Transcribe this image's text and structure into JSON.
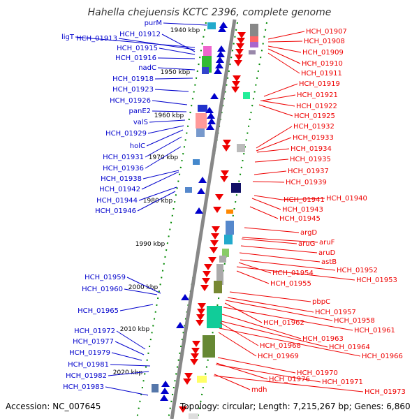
{
  "title": "Hahella chejuensis KCTC 2396, complete genome",
  "footer": {
    "accession": "Accession: NC_007645",
    "topology": "Topology: circular; Length: 7,215,267 bp; Genes: 6,860"
  },
  "colors": {
    "forward": "#0000cc",
    "reverse": "#ee0000",
    "backbone": "#888888",
    "scale": "#008800"
  },
  "kbp_marks": [
    "1940 kbp",
    "1950 kbp",
    "1960 kbp",
    "1970 kbp",
    "1980 kbp",
    "1990 kbp",
    "2000 kbp",
    "2010 kbp",
    "2020 kbp"
  ],
  "left_labels": [
    "purM",
    "ligT",
    "HCH_01913",
    "HCH_01912",
    "HCH_01915",
    "HCH_01916",
    "nadC",
    "HCH_01918",
    "HCH_01923",
    "HCH_01926",
    "panE2",
    "valS",
    "HCH_01929",
    "holC",
    "HCH_01931",
    "HCH_01936",
    "HCH_01938",
    "HCH_01942",
    "HCH_01944",
    "HCH_01946",
    "HCH_01959",
    "HCH_01960",
    "HCH_01965",
    "HCH_01972",
    "HCH_01977",
    "HCH_01979",
    "HCH_01981",
    "HCH_01982",
    "HCH_01983"
  ],
  "right_labels": [
    "HCH_01907",
    "HCH_01908",
    "HCH_01909",
    "HCH_01910",
    "HCH_01911",
    "HCH_01919",
    "HCH_01921",
    "HCH_01922",
    "HCH_01925",
    "HCH_01932",
    "HCH_01933",
    "HCH_01934",
    "HCH_01935",
    "HCH_01937",
    "HCH_01939",
    "HCH_01940",
    "HCH_01941",
    "HCH_01943",
    "HCH_01945",
    "argD",
    "aruF",
    "aruG",
    "aruD",
    "astB",
    "HCH_01952",
    "HCH_01954",
    "HCH_01953",
    "HCH_01955",
    "pbpC",
    "HCH_01957",
    "HCH_01958",
    "HCH_01962",
    "HCH_01961",
    "HCH_01963",
    "HCH_01964",
    "HCH_01968",
    "HCH_01966",
    "HCH_01969",
    "HCH_01970",
    "HCH_01976",
    "HCH_01971",
    "mdh",
    "HCH_01973"
  ]
}
